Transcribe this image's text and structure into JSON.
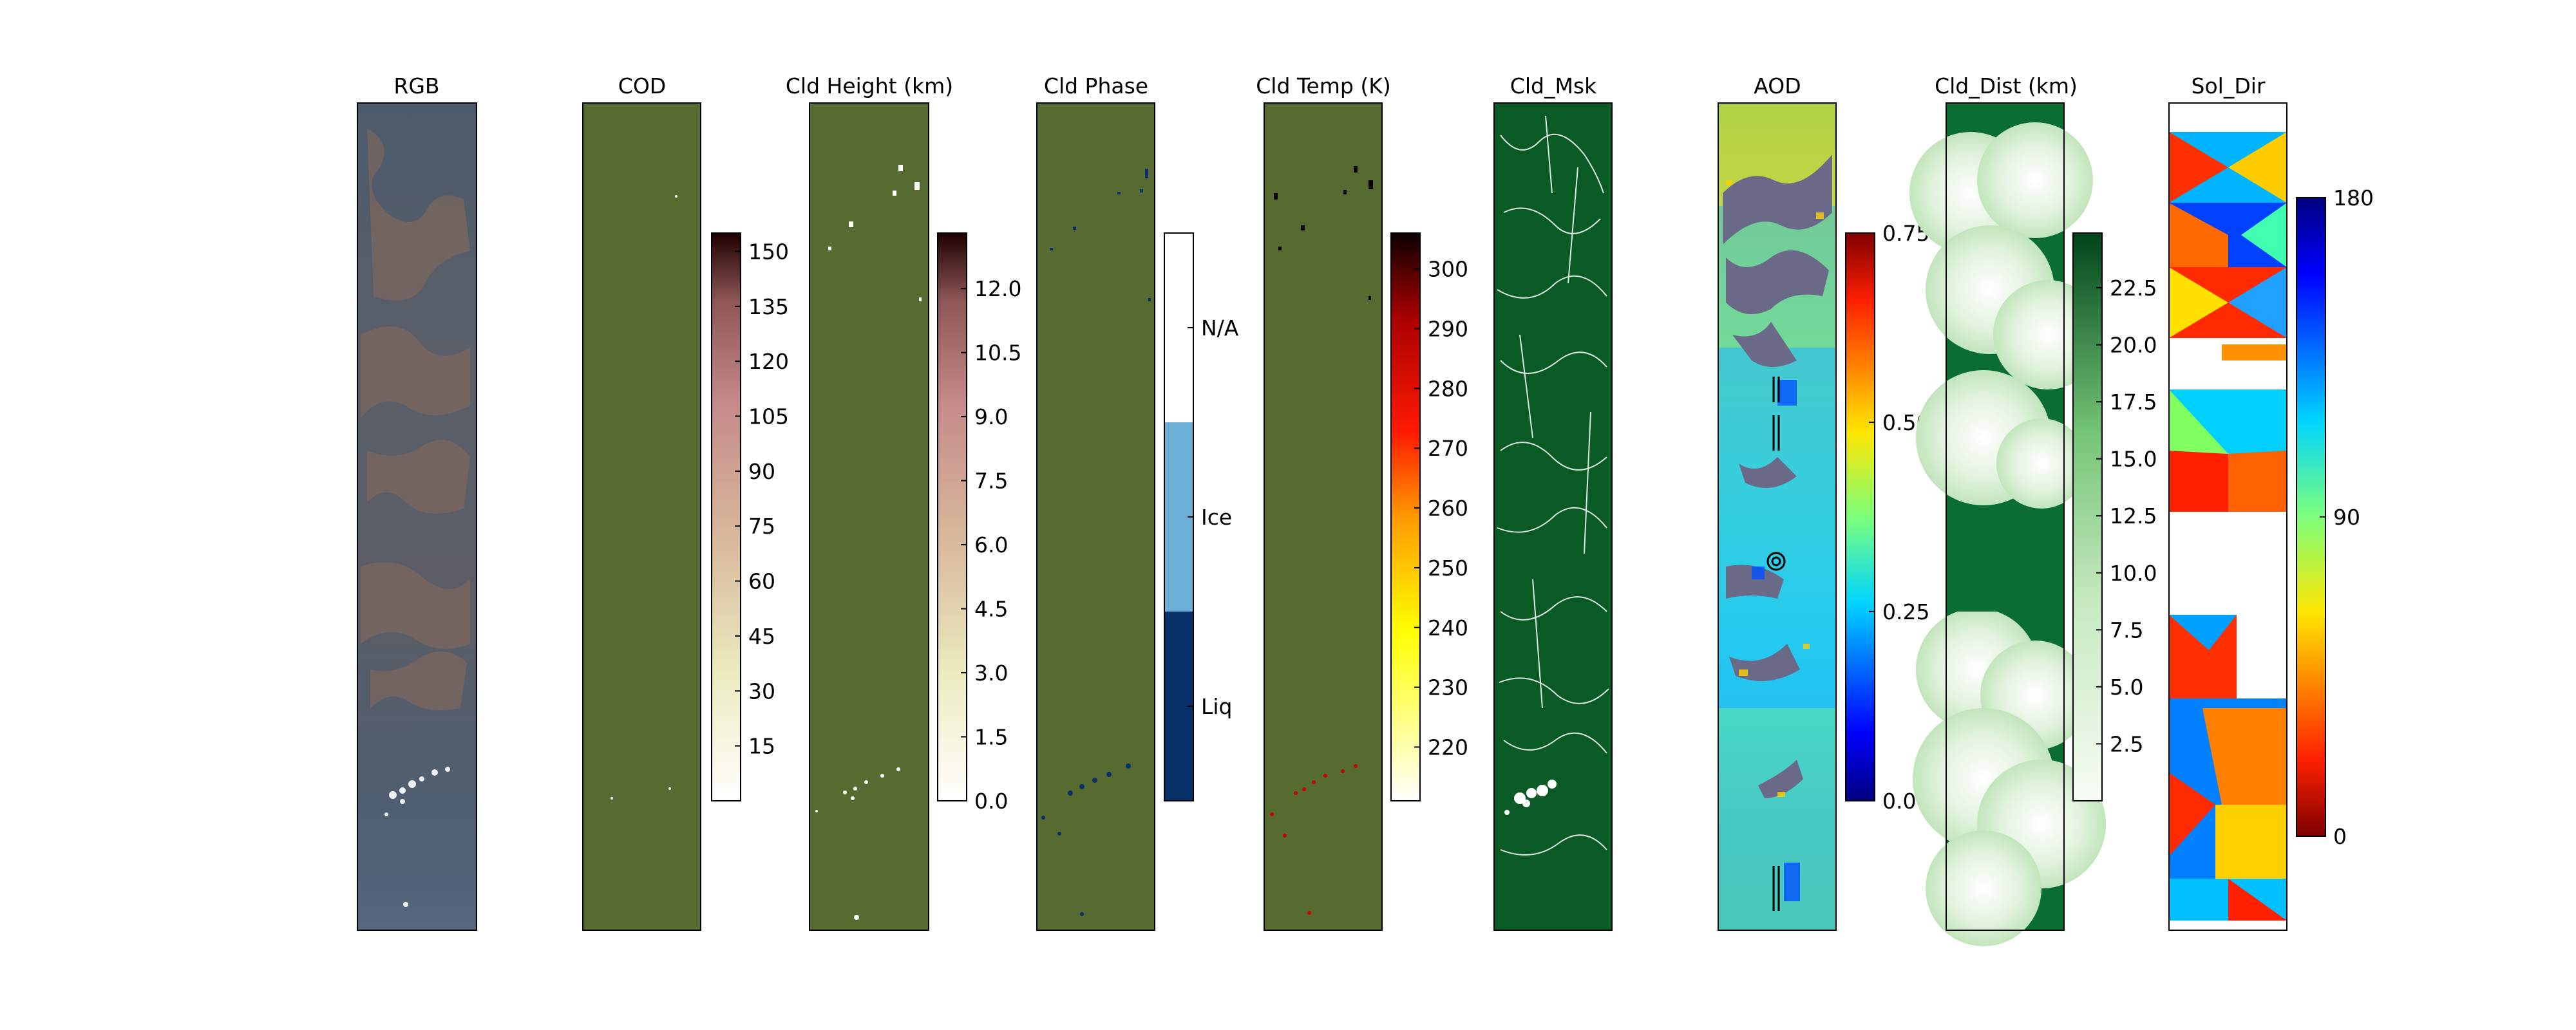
{
  "figure": {
    "panels": [
      {
        "id": "rgb",
        "title": "RGB"
      },
      {
        "id": "cod",
        "title": "COD"
      },
      {
        "id": "cth",
        "title": "Cld Height (km)"
      },
      {
        "id": "phase",
        "title": "Cld Phase"
      },
      {
        "id": "ctt",
        "title": "Cld Temp (K)"
      },
      {
        "id": "msk",
        "title": "Cld_Msk"
      },
      {
        "id": "aod",
        "title": "AOD"
      },
      {
        "id": "dist",
        "title": "Cld_Dist (km)"
      },
      {
        "id": "sol",
        "title": "Sol_Dir"
      }
    ]
  },
  "colors": {
    "olive_background": "#556b2f",
    "mask_green": "#0a5a26",
    "phase_na": "#ffffff",
    "phase_ice": "#6baed6",
    "phase_liq": "#08306b"
  },
  "chart_data": [
    {
      "type": "colorbar",
      "panel": "COD",
      "colormap": "pink_r",
      "range": [
        0,
        155
      ],
      "ticks": [
        15,
        30,
        45,
        60,
        75,
        90,
        105,
        120,
        135,
        150
      ],
      "tick_labels": [
        "15",
        "30",
        "45",
        "60",
        "75",
        "90",
        "105",
        "120",
        "135",
        "150"
      ]
    },
    {
      "type": "colorbar",
      "panel": "Cld Height (km)",
      "colormap": "pink_r",
      "range": [
        0,
        13.3
      ],
      "ticks": [
        0.0,
        1.5,
        3.0,
        4.5,
        6.0,
        7.5,
        9.0,
        10.5,
        12.0
      ],
      "tick_labels": [
        "0.0",
        "1.5",
        "3.0",
        "4.5",
        "6.0",
        "7.5",
        "9.0",
        "10.5",
        "12.0"
      ]
    },
    {
      "type": "colorbar",
      "panel": "Cld Phase",
      "colormap": "discrete",
      "categories": [
        "Liq",
        "Ice",
        "N/A"
      ]
    },
    {
      "type": "colorbar",
      "panel": "Cld Temp (K)",
      "colormap": "hot_r",
      "range": [
        211,
        306
      ],
      "ticks": [
        220,
        230,
        240,
        250,
        260,
        270,
        280,
        290,
        300
      ],
      "tick_labels": [
        "220",
        "230",
        "240",
        "250",
        "260",
        "270",
        "280",
        "290",
        "300"
      ]
    },
    {
      "type": "colorbar",
      "panel": "AOD",
      "colormap": "jet",
      "range": [
        0,
        0.75
      ],
      "ticks": [
        0.0,
        0.25,
        0.5,
        0.75
      ],
      "tick_labels": [
        "0.00",
        "0.25",
        "0.50",
        "0.75"
      ]
    },
    {
      "type": "colorbar",
      "panel": "Cld_Dist (km)",
      "colormap": "Greens",
      "range": [
        0,
        24.9
      ],
      "ticks": [
        2.5,
        5.0,
        7.5,
        10.0,
        12.5,
        15.0,
        17.5,
        20.0,
        22.5
      ],
      "tick_labels": [
        "2.5",
        "5.0",
        "7.5",
        "10.0",
        "12.5",
        "15.0",
        "17.5",
        "20.0",
        "22.5"
      ]
    },
    {
      "type": "colorbar",
      "panel": "Sol_Dir",
      "colormap": "jet_r",
      "range": [
        0,
        180
      ],
      "ticks": [
        0,
        90,
        180
      ],
      "tick_labels": [
        "0",
        "90",
        "180"
      ]
    }
  ]
}
